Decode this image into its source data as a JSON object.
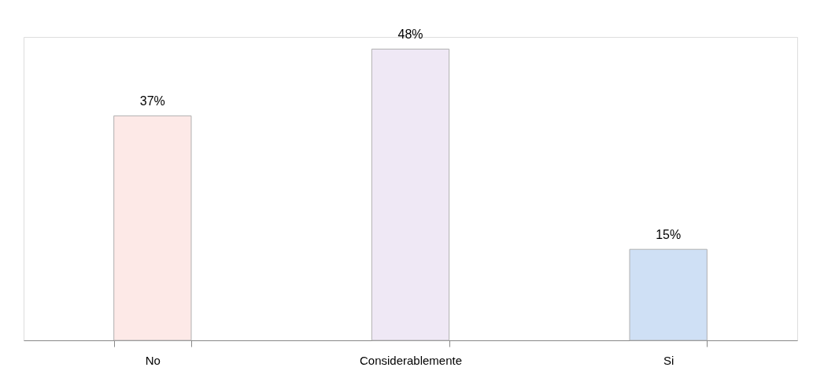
{
  "chart_data": {
    "type": "bar",
    "categories": [
      "No",
      "Considerablemente",
      "Si"
    ],
    "values": [
      37,
      48,
      15
    ],
    "colors": [
      "#fde9e7",
      "#efe8f5",
      "#cfe0f5"
    ],
    "value_labels": [
      "37%",
      "48%",
      "15%"
    ],
    "grid": false,
    "legend": false
  }
}
